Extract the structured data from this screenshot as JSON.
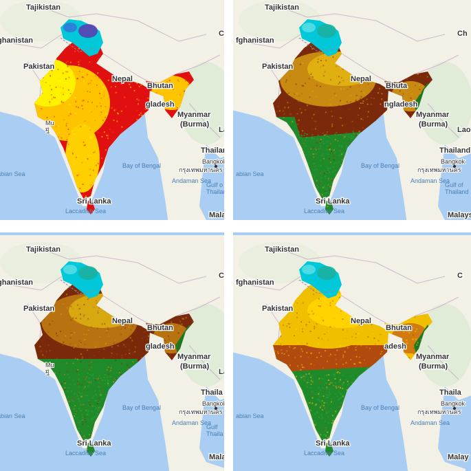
{
  "panels": [
    {
      "id": "p1",
      "scheme": [
        "#e01010",
        "#ff2a00",
        "#ff7a00",
        "#ffc400",
        "#fff200",
        "#ffd000",
        "#ff4500"
      ],
      "north": [
        "#5a3fb0",
        "#00c8d8",
        "#3a6fd8"
      ],
      "labels": {
        "tajikistan": "Tajikistan",
        "afghanistan": "ghanistan",
        "pakistan": "Pakistan",
        "nepal": "Nepal",
        "bhutan": "Bhutan",
        "bangladesh": "gladesh",
        "myanmar": "Myanmar",
        "burma": "(Burma)",
        "thailand": "Thailar",
        "bay": "Bay of Bengal",
        "arabian": "abian Sea",
        "bangkok": "Bangkok",
        "bangkok_thai": "กรุงเทพมหานคร",
        "andaman": "Andaman Sea",
        "gulf": "Gulf o",
        "thailand2": "Thailan",
        "srilanka": "Sri Lanka",
        "laccadive": "Laccadive Sea",
        "mumbai": "Mu",
        "mumbai2": "मुं",
        "la": "La",
        "malay": "Malay",
        "c": "C"
      }
    },
    {
      "id": "p2",
      "scheme": [
        "#7a2a0a",
        "#8b3a10",
        "#a0520f",
        "#c98a12",
        "#e0b010",
        "#d8a20e",
        "#b06a12"
      ],
      "north": [
        "#1bb0a0",
        "#00c8d8",
        "#5fe0e8"
      ],
      "labels": {
        "tajikistan": "Tajikistan",
        "afghanistan": "fghanistan",
        "pakistan": "Pakistan",
        "nepal": "Nepal",
        "bhutan": "Bhuta",
        "bangladesh": "ngladesh",
        "myanmar": "Myanmar",
        "burma": "(Burma)",
        "thailand": "Thailand",
        "bay": "Bay of Bengal",
        "arabian": "abian Sea",
        "bangkok": "Bangkok",
        "bangkok_thai": "กรุงเทพมหานคร",
        "andaman": "Andaman Sea",
        "gulf": "Gulf of",
        "thailand2": "Thailand",
        "srilanka": "Sri Lanka",
        "laccadive": "Laccadive Sea",
        "mumbai": "",
        "mumbai2": "",
        "la": "Laos",
        "malay": "Malays",
        "c": "Ch"
      }
    },
    {
      "id": "p3",
      "scheme": [
        "#7a2a0a",
        "#8b3a10",
        "#9c4a12",
        "#b8720f",
        "#d8a810",
        "#c9900f",
        "#a05012"
      ],
      "north": [
        "#1bb0a0",
        "#00c8d8",
        "#5fe0e8"
      ],
      "labels": {
        "tajikistan": "Tajikistan",
        "afghanistan": "ghanistan",
        "pakistan": "Pakistan",
        "nepal": "Nepal",
        "bhutan": "Bhutan",
        "bangladesh": "gladesh",
        "myanmar": "Myanmar",
        "burma": "(Burma)",
        "thailand": "Thaila",
        "bay": "Bay of Bengal",
        "arabian": "abian Sea",
        "bangkok": "Bangkok",
        "bangkok_thai": "กรุงเทพมหานคร",
        "andaman": "Andaman Sea",
        "gulf": "Gulf",
        "thailand2": "Thaila",
        "srilanka": "Sri Lanka",
        "laccadive": "Laccadive Sea",
        "mumbai": "Mu",
        "mumbai2": "मुं",
        "la": "La",
        "malay": "Mala",
        "c": "C"
      }
    },
    {
      "id": "p4",
      "scheme": [
        "#f0c000",
        "#ffd200",
        "#e8a800",
        "#d07a10",
        "#b04a0e",
        "#f2b400",
        "#c85a10"
      ],
      "north": [
        "#1bb0a0",
        "#00c8d8",
        "#5fe0e8"
      ],
      "labels": {
        "tajikistan": "Tajikistan",
        "afghanistan": "fghanistan",
        "pakistan": "Pakistan",
        "nepal": "Nepal",
        "bhutan": "Bhutan",
        "bangladesh": "adesh",
        "myanmar": "Myanmar",
        "burma": "(Burma)",
        "thailand": "Thaila",
        "bay": "Bay of Bengal",
        "arabian": "abian Sea",
        "bangkok": "Bangkok",
        "bangkok_thai": "กรุงเทพมหานคร",
        "andaman": "Andaman Sea",
        "gulf": "",
        "thailand2": "",
        "srilanka": "Sri Lanka",
        "laccadive": "Laccadive Sea",
        "mumbai": "",
        "mumbai2": "",
        "la": "",
        "malay": "Malay",
        "c": "C"
      }
    }
  ],
  "colors": {
    "water": "#a9cdf3",
    "land": "#f3f0e6",
    "land_green": "#d9ead1",
    "border": "#c6a9c9",
    "green_south": "#1f8a2a",
    "green_south2": "#2fa03a",
    "green_east": "#1a7a24"
  }
}
